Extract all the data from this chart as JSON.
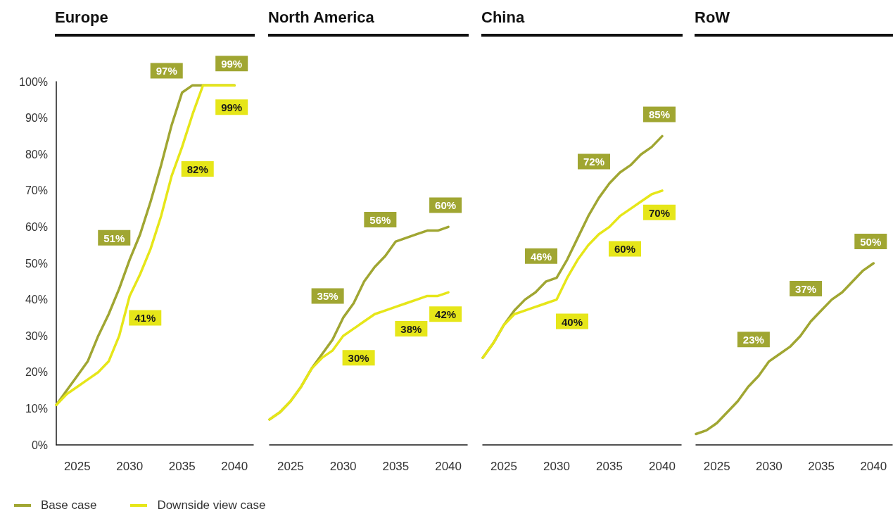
{
  "chart_data": [
    {
      "type": "line",
      "title": "Europe",
      "x": [
        2023,
        2024,
        2025,
        2026,
        2027,
        2028,
        2029,
        2030,
        2031,
        2032,
        2033,
        2034,
        2035,
        2036,
        2037,
        2038,
        2039,
        2040
      ],
      "xlim": [
        2023,
        2041.8
      ],
      "xticks": [
        2025,
        2030,
        2035,
        2040
      ],
      "ylim": [
        0,
        100
      ],
      "yticks": [
        {
          "value": 0,
          "label": "0%"
        },
        {
          "value": 10,
          "label": "10%"
        },
        {
          "value": 20,
          "label": "20%"
        },
        {
          "value": 30,
          "label": "30%"
        },
        {
          "value": 40,
          "label": "40%"
        },
        {
          "value": 50,
          "label": "50%"
        },
        {
          "value": 60,
          "label": "60%"
        },
        {
          "value": 70,
          "label": "70%"
        },
        {
          "value": 80,
          "label": "80%"
        },
        {
          "value": 90,
          "label": "90%"
        },
        {
          "value": 100,
          "label": "100%"
        }
      ],
      "legend": "bottom left",
      "series": [
        {
          "name": "Base case",
          "color": "#a0a632",
          "values": [
            11,
            15,
            19,
            23,
            30,
            36,
            43,
            51,
            58,
            67,
            77,
            88,
            97,
            99,
            99,
            99,
            99,
            99
          ],
          "value_labels": [
            null,
            null,
            null,
            null,
            null,
            null,
            null,
            "51%",
            null,
            null,
            null,
            null,
            "97%",
            null,
            null,
            null,
            null,
            "99%"
          ]
        },
        {
          "name": "Downside view case",
          "color": "#e6e619",
          "values": [
            11,
            14,
            16,
            18,
            20,
            23,
            30,
            41,
            47,
            54,
            63,
            74,
            82,
            91,
            99,
            99,
            99,
            99
          ],
          "value_labels": [
            null,
            null,
            null,
            null,
            null,
            null,
            null,
            "41%",
            null,
            null,
            null,
            null,
            "82%",
            null,
            null,
            null,
            null,
            "99%"
          ]
        }
      ]
    },
    {
      "type": "line",
      "title": "North America",
      "x": [
        2023,
        2024,
        2025,
        2026,
        2027,
        2028,
        2029,
        2030,
        2031,
        2032,
        2033,
        2034,
        2035,
        2036,
        2037,
        2038,
        2039,
        2040
      ],
      "xlim": [
        2023,
        2041.8
      ],
      "xticks": [
        2025,
        2030,
        2035,
        2040
      ],
      "ylim": [
        0,
        100
      ],
      "tick_labels": "x",
      "series": [
        {
          "color": "#a0a632",
          "values": [
            7,
            9,
            12,
            16,
            21,
            25,
            29,
            35,
            39,
            45,
            49,
            52,
            56,
            57,
            58,
            59,
            59,
            60
          ],
          "value_labels": [
            null,
            null,
            null,
            null,
            null,
            null,
            null,
            "35%",
            null,
            null,
            null,
            null,
            "56%",
            null,
            null,
            null,
            null,
            "60%"
          ]
        },
        {
          "color": "#e6e619",
          "values": [
            7,
            9,
            12,
            16,
            21,
            24,
            26,
            30,
            32,
            34,
            36,
            37,
            38,
            39,
            40,
            41,
            41,
            42
          ],
          "value_labels": [
            null,
            null,
            null,
            null,
            null,
            null,
            null,
            "30%",
            null,
            null,
            null,
            null,
            "38%",
            null,
            null,
            null,
            null,
            "42%"
          ]
        }
      ]
    },
    {
      "type": "line",
      "title": "China",
      "x": [
        2023,
        2024,
        2025,
        2026,
        2027,
        2028,
        2029,
        2030,
        2031,
        2032,
        2033,
        2034,
        2035,
        2036,
        2037,
        2038,
        2039,
        2040
      ],
      "xlim": [
        2023,
        2041.8
      ],
      "xticks": [
        2025,
        2030,
        2035,
        2040
      ],
      "ylim": [
        0,
        100
      ],
      "tick_labels": "x",
      "series": [
        {
          "color": "#a0a632",
          "values": [
            24,
            28,
            33,
            37,
            40,
            42,
            45,
            46,
            51,
            57,
            63,
            68,
            72,
            75,
            77,
            80,
            82,
            85
          ],
          "value_labels": [
            null,
            null,
            null,
            null,
            null,
            null,
            null,
            "46%",
            null,
            null,
            null,
            null,
            "72%",
            null,
            null,
            null,
            null,
            "85%"
          ]
        },
        {
          "color": "#e6e619",
          "values": [
            24,
            28,
            33,
            36,
            37,
            38,
            39,
            40,
            46,
            51,
            55,
            58,
            60,
            63,
            65,
            67,
            69,
            70
          ],
          "value_labels": [
            null,
            null,
            null,
            null,
            null,
            null,
            null,
            "40%",
            null,
            null,
            null,
            null,
            "60%",
            null,
            null,
            null,
            null,
            "70%"
          ]
        }
      ]
    },
    {
      "type": "line",
      "title": "RoW",
      "x": [
        2023,
        2024,
        2025,
        2026,
        2027,
        2028,
        2029,
        2030,
        2031,
        2032,
        2033,
        2034,
        2035,
        2036,
        2037,
        2038,
        2039,
        2040
      ],
      "xlim": [
        2023,
        2041.8
      ],
      "xticks": [
        2025,
        2030,
        2035,
        2040
      ],
      "ylim": [
        0,
        100
      ],
      "tick_labels": "x",
      "series": [
        {
          "color": "#a0a632",
          "values": [
            3,
            4,
            6,
            9,
            12,
            16,
            19,
            23,
            25,
            27,
            30,
            34,
            37,
            40,
            42,
            45,
            48,
            50
          ],
          "value_labels": [
            null,
            null,
            null,
            null,
            null,
            null,
            null,
            "23%",
            null,
            null,
            null,
            null,
            "37%",
            null,
            null,
            null,
            null,
            "50%"
          ]
        }
      ]
    }
  ]
}
